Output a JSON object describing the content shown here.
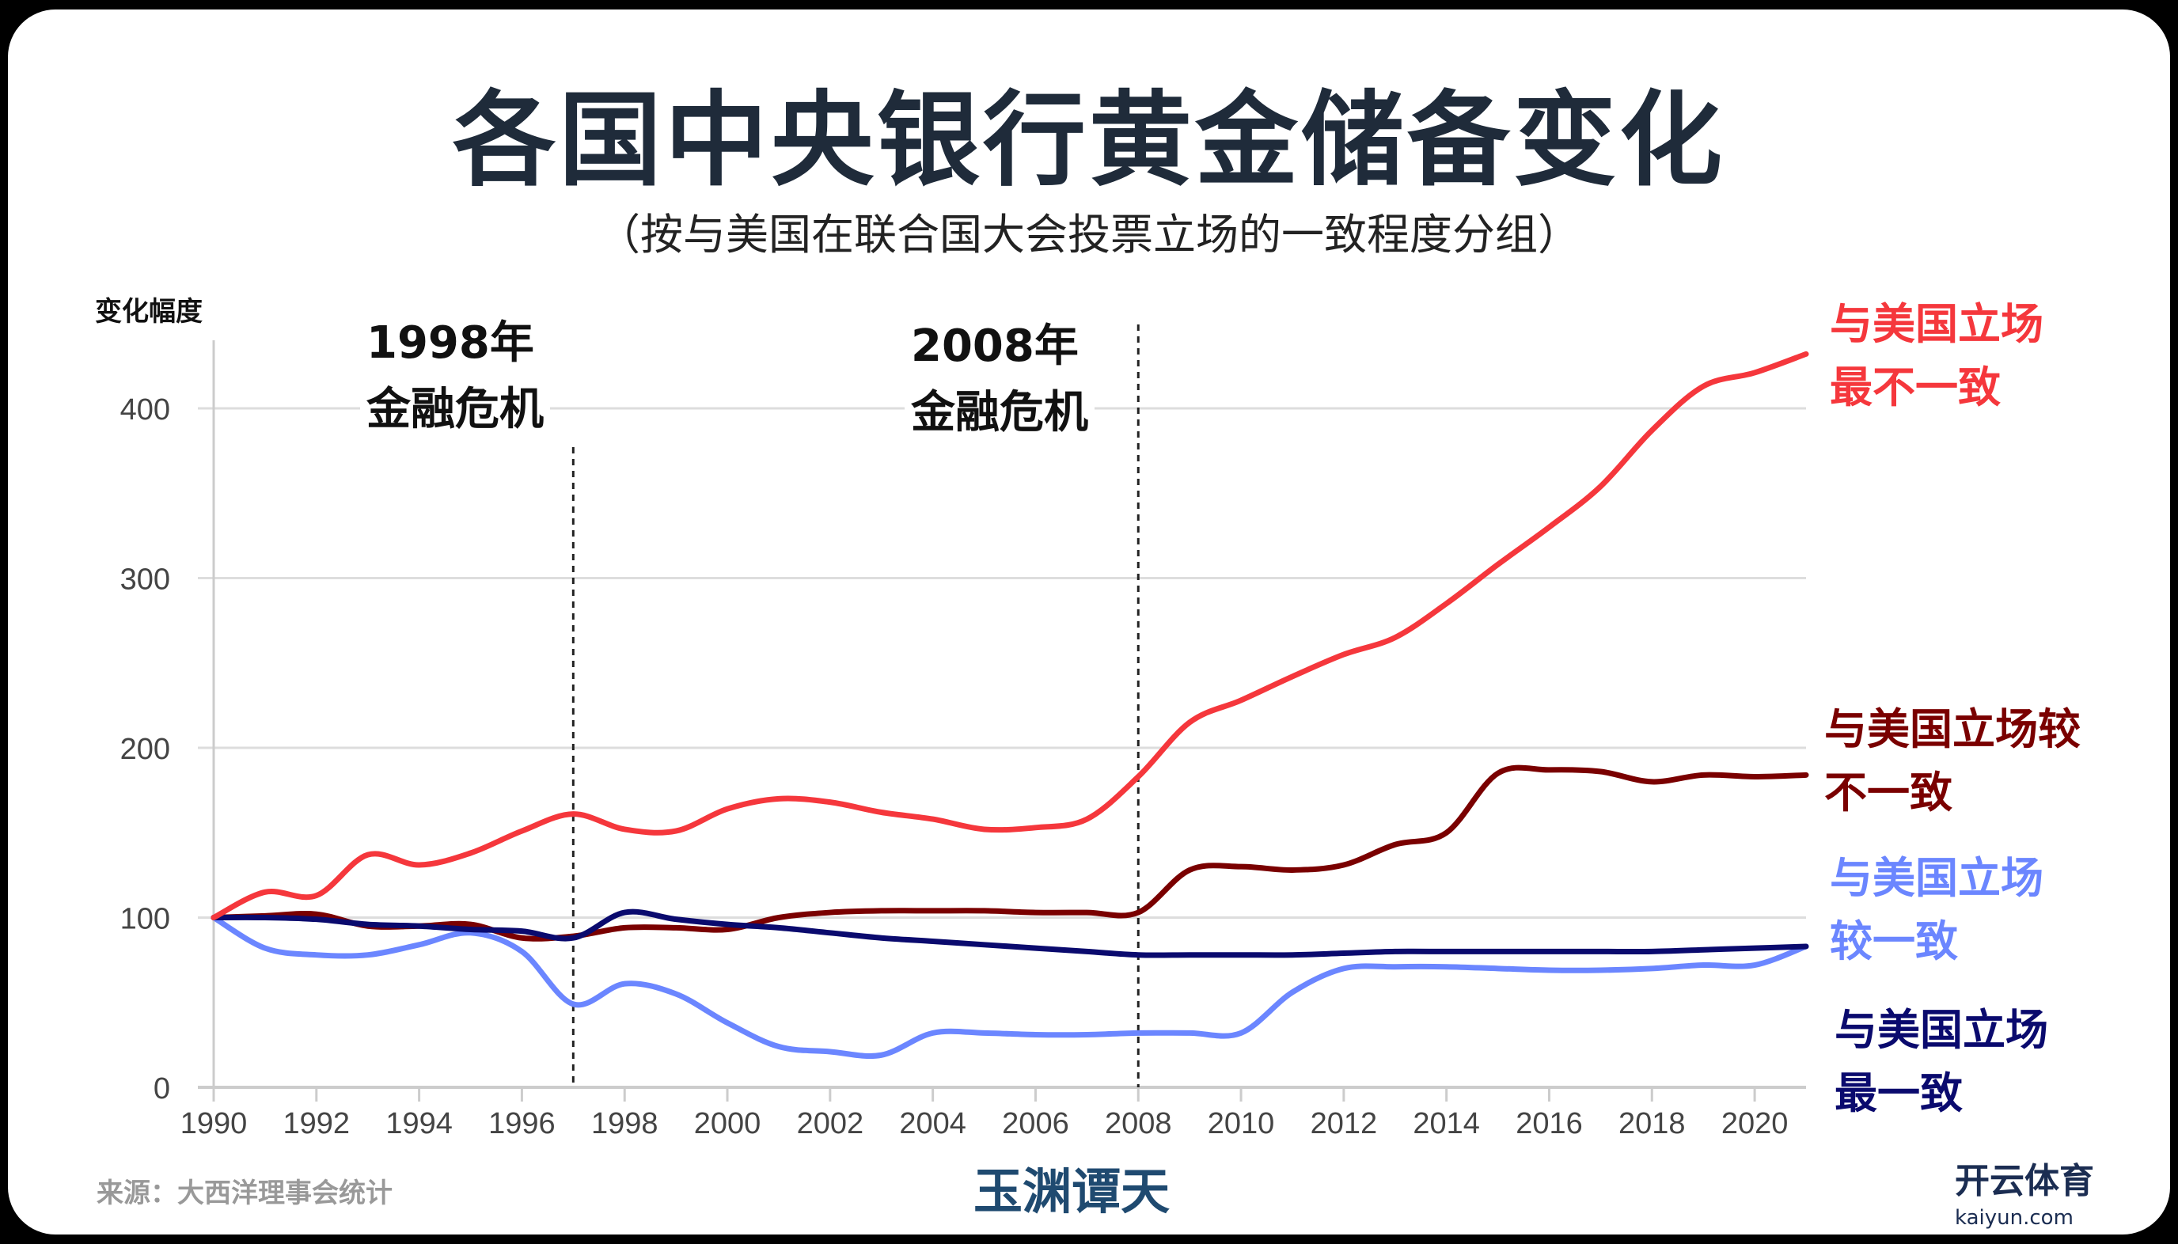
{
  "title": "各国中央银行黄金储备变化",
  "subtitle": "（按与美国在联合国大会投票立场的一致程度分组）",
  "source": "来源：大西洋理事会统计",
  "logos": {
    "left": "玉渊谭天",
    "right": "开云体育",
    "right_sub": "kaiyun.com"
  },
  "chart_data": {
    "type": "line",
    "ylabel": "变化幅度",
    "xlabel": "",
    "xlim": [
      1990,
      2021
    ],
    "ylim": [
      0,
      450
    ],
    "yticks": [
      0,
      100,
      200,
      300,
      400
    ],
    "xticks": [
      1990,
      1992,
      1994,
      1996,
      1998,
      2000,
      2002,
      2004,
      2006,
      2008,
      2010,
      2012,
      2014,
      2016,
      2018,
      2020
    ],
    "grid": "horizontal",
    "x": [
      1990,
      1991,
      1992,
      1993,
      1994,
      1995,
      1996,
      1997,
      1998,
      1999,
      2000,
      2001,
      2002,
      2003,
      2004,
      2005,
      2006,
      2007,
      2008,
      2009,
      2010,
      2011,
      2012,
      2013,
      2014,
      2015,
      2016,
      2017,
      2018,
      2019,
      2020,
      2021
    ],
    "series": [
      {
        "name": "与美国立场最不一致",
        "label_lines": [
          "与美国立场",
          "最不一致"
        ],
        "color": "#f5373c",
        "values": [
          100,
          115,
          113,
          137,
          131,
          138,
          151,
          161,
          152,
          151,
          164,
          170,
          168,
          162,
          158,
          152,
          153,
          158,
          183,
          215,
          228,
          242,
          255,
          265,
          285,
          308,
          330,
          354,
          387,
          413,
          421,
          432
        ]
      },
      {
        "name": "与美国立场较不一致",
        "label_lines": [
          "与美国立场较",
          "不一致"
        ],
        "color": "#7a0000",
        "values": [
          100,
          101,
          102,
          95,
          95,
          96,
          88,
          89,
          94,
          94,
          93,
          100,
          103,
          104,
          104,
          104,
          103,
          103,
          103,
          128,
          130,
          128,
          131,
          143,
          150,
          185,
          187,
          186,
          180,
          184,
          183,
          184
        ]
      },
      {
        "name": "与美国立场较一致",
        "label_lines": [
          "与美国立场",
          "较一致"
        ],
        "color": "#6b86ff",
        "values": [
          100,
          82,
          78,
          78,
          84,
          91,
          80,
          49,
          61,
          55,
          38,
          24,
          21,
          19,
          32,
          32,
          31,
          31,
          32,
          32,
          32,
          56,
          70,
          71,
          71,
          70,
          69,
          69,
          70,
          72,
          72,
          83
        ]
      },
      {
        "name": "与美国立场最一致",
        "label_lines": [
          "与美国立场",
          "最一致"
        ],
        "color": "#0a0a6e",
        "values": [
          100,
          100,
          99,
          96,
          95,
          93,
          92,
          88,
          103,
          99,
          96,
          94,
          91,
          88,
          86,
          84,
          82,
          80,
          78,
          78,
          78,
          78,
          79,
          80,
          80,
          80,
          80,
          80,
          80,
          81,
          82,
          83
        ]
      }
    ],
    "annotations": [
      {
        "x": 1997,
        "lines": [
          "1998年",
          "金融危机"
        ]
      },
      {
        "x": 2008,
        "lines": [
          "2008年",
          "金融危机"
        ]
      }
    ]
  }
}
